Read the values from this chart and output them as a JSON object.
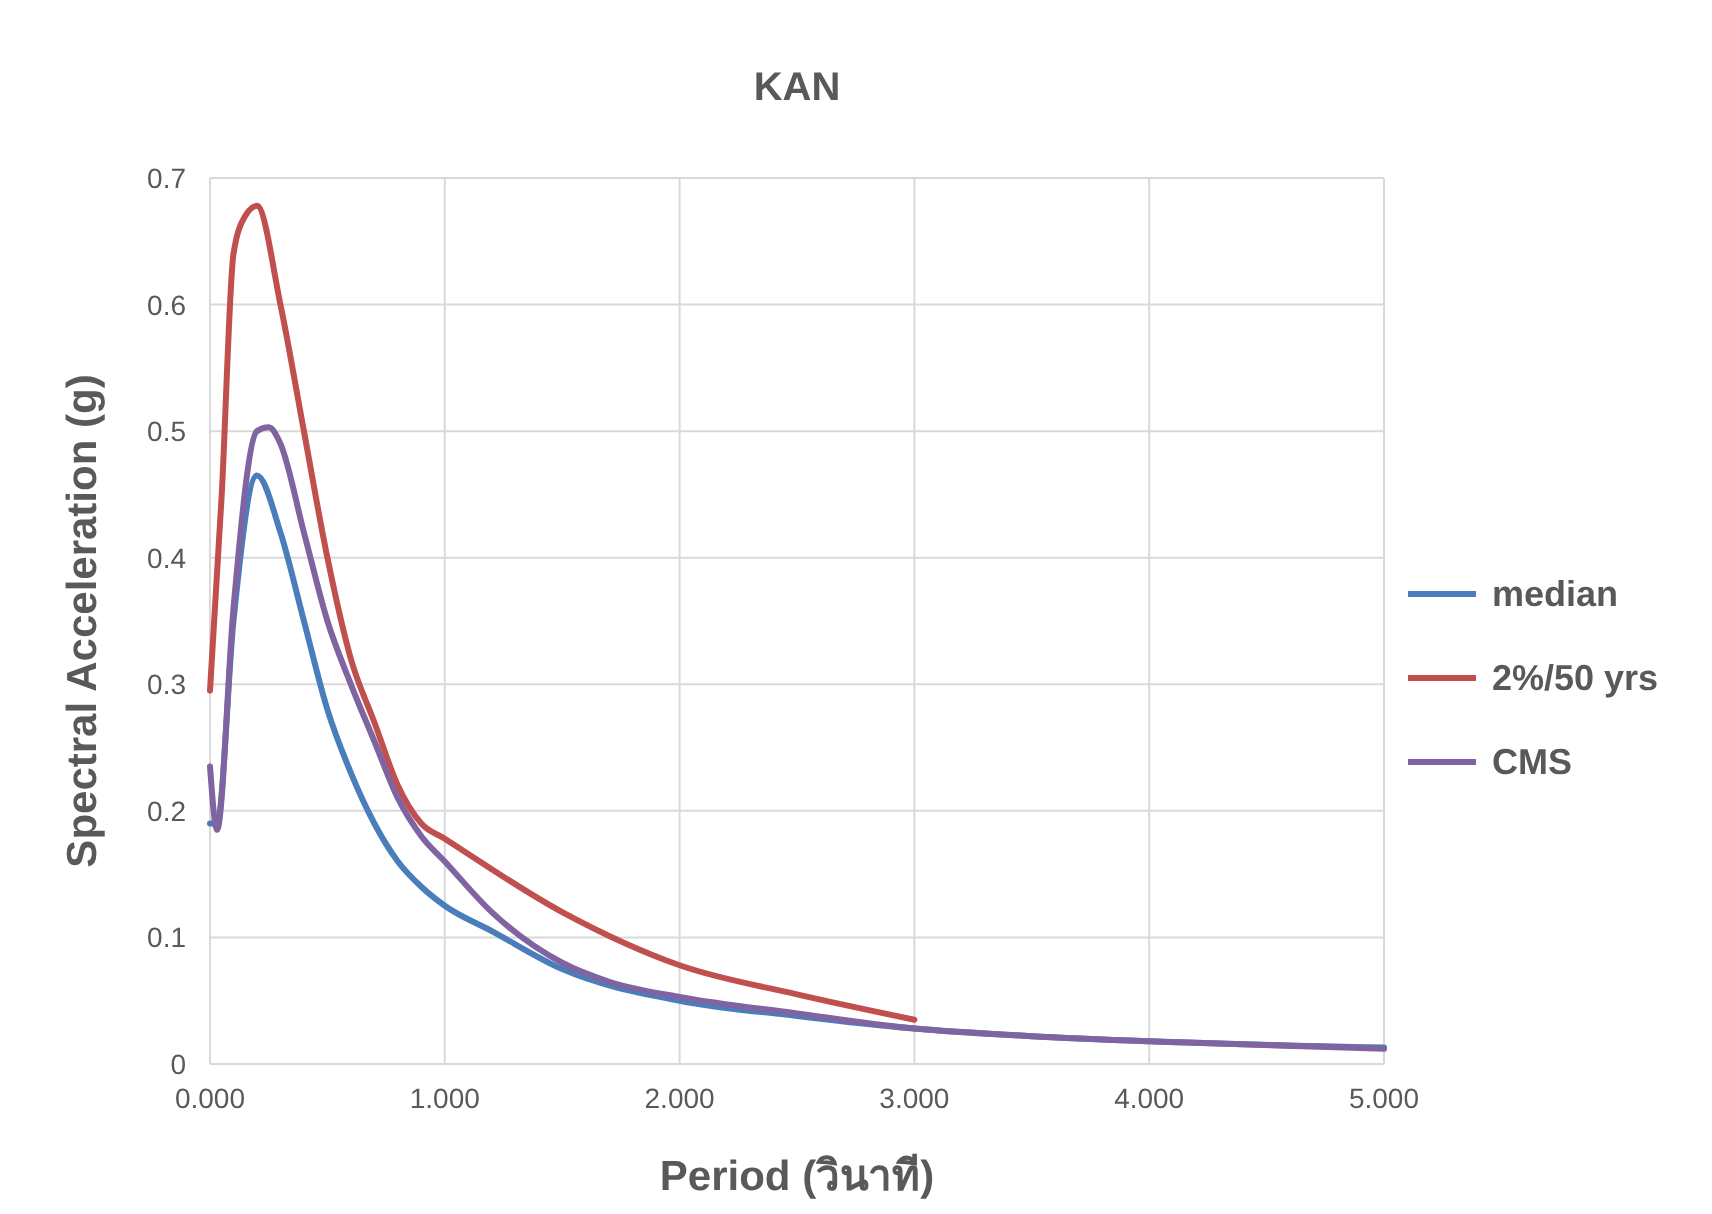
{
  "chart_data": {
    "type": "line",
    "title": "KAN",
    "xlabel": "Period (วินาที)",
    "ylabel": "Spectral Acceleration (g)",
    "xlim": [
      0,
      5
    ],
    "xticks": [
      {
        "value": 0,
        "label": "0.000"
      },
      {
        "value": 1,
        "label": "1.000"
      },
      {
        "value": 2,
        "label": "2.000"
      },
      {
        "value": 3,
        "label": "3.000"
      },
      {
        "value": 4,
        "label": "4.000"
      },
      {
        "value": 5,
        "label": "5.000"
      }
    ],
    "ylim": [
      0,
      0.7
    ],
    "yticks": [
      0,
      0.1,
      0.2,
      0.3,
      0.4,
      0.5,
      0.6,
      0.7
    ],
    "grid": true,
    "legend": "right",
    "marker": "none",
    "line_style": "solid",
    "series": [
      {
        "name": "median",
        "color": "#4a7ebb",
        "x": [
          0,
          0.03,
          0.1,
          0.2,
          0.3,
          0.4,
          0.5,
          0.6,
          0.7,
          0.8,
          0.9,
          1.0,
          1.2,
          1.5,
          2,
          2.5,
          3,
          3.5,
          4,
          5
        ],
        "values": [
          0.19,
          0.19,
          0.35,
          0.465,
          0.42,
          0.35,
          0.28,
          0.23,
          0.19,
          0.16,
          0.14,
          0.125,
          0.105,
          0.075,
          0.05,
          0.038,
          0.028,
          0.022,
          0.018,
          0.013
        ]
      },
      {
        "name": "2%/50 yrs",
        "color": "#c0504d",
        "x": [
          0,
          0.05,
          0.1,
          0.15,
          0.2,
          0.3,
          0.4,
          0.5,
          0.6,
          0.7,
          0.8,
          0.9,
          1.0,
          1.5,
          2,
          2.5,
          3
        ],
        "values": [
          0.295,
          0.45,
          0.64,
          0.67,
          0.678,
          0.6,
          0.5,
          0.4,
          0.32,
          0.27,
          0.22,
          0.19,
          0.178,
          0.12,
          0.078,
          0.055,
          0.035
        ]
      },
      {
        "name": "CMS",
        "color": "#8064a2",
        "x": [
          0,
          0.03,
          0.1,
          0.2,
          0.25,
          0.3,
          0.4,
          0.5,
          0.6,
          0.7,
          0.8,
          0.9,
          1.0,
          1.2,
          1.5,
          1.7,
          2,
          2.5,
          3,
          3.5,
          4,
          5
        ],
        "values": [
          0.235,
          0.185,
          0.36,
          0.5,
          0.503,
          0.49,
          0.42,
          0.35,
          0.3,
          0.255,
          0.21,
          0.18,
          0.16,
          0.12,
          0.08,
          0.065,
          0.053,
          0.04,
          0.028,
          0.022,
          0.018,
          0.012
        ]
      }
    ]
  }
}
